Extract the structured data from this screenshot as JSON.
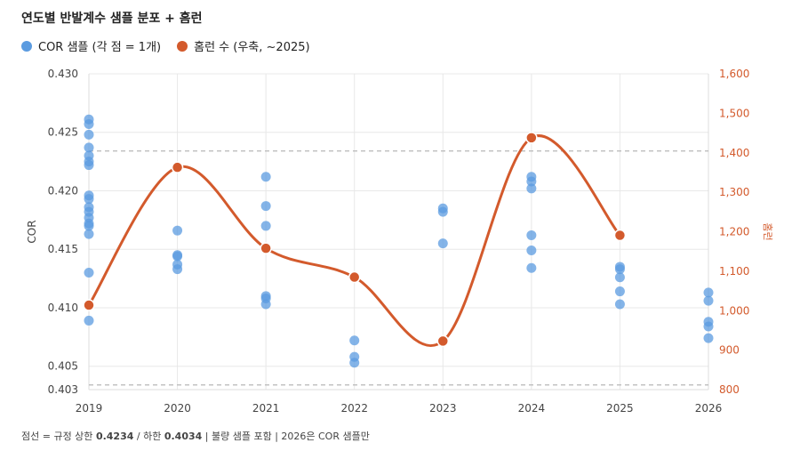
{
  "chart_data": {
    "type": "scatter",
    "title": "연도별 반발계수 샘플 분포 + 홈런",
    "legend": [
      {
        "label": "COR 샘플 (각 점 = 1개)",
        "color": "#5b9be0"
      },
      {
        "label": "홈런 수 (우축, ~2025)",
        "color": "#d35a2c"
      }
    ],
    "x": {
      "label": "",
      "ticks": [
        "2019",
        "2020",
        "2021",
        "2022",
        "2023",
        "2024",
        "2025",
        "2026"
      ]
    },
    "y_left": {
      "label": "COR",
      "range": [
        0.403,
        0.43
      ],
      "ticks": [
        "0.430",
        "0.425",
        "0.420",
        "0.415",
        "0.410",
        "0.405",
        "0.403"
      ],
      "tick_values": [
        0.43,
        0.425,
        0.42,
        0.415,
        0.41,
        0.405,
        0.403
      ]
    },
    "y_right": {
      "label": "홈런",
      "range": [
        800,
        1600
      ],
      "ticks": [
        "1,600",
        "1,500",
        "1,400",
        "1,300",
        "1,200",
        "1,100",
        "1,000",
        "900",
        "800"
      ],
      "tick_values": [
        1600,
        1500,
        1400,
        1300,
        1200,
        1100,
        1000,
        900,
        800
      ]
    },
    "reference_lines": [
      {
        "label": "규정 상한",
        "value": 0.4234
      },
      {
        "label": "하한",
        "value": 0.4034
      }
    ],
    "cor_samples": [
      {
        "year": "2019",
        "values": [
          0.4261,
          0.4257,
          0.4248,
          0.4237,
          0.423,
          0.4225,
          0.4222,
          0.4196,
          0.4193,
          0.4186,
          0.4182,
          0.4177,
          0.4172,
          0.417,
          0.4163,
          0.413,
          0.4089
        ]
      },
      {
        "year": "2020",
        "values": [
          0.4166,
          0.4145,
          0.4144,
          0.4137,
          0.4133
        ]
      },
      {
        "year": "2021",
        "values": [
          0.4212,
          0.4187,
          0.417,
          0.411,
          0.4108,
          0.4103
        ]
      },
      {
        "year": "2022",
        "values": [
          0.4072,
          0.4058,
          0.4053
        ]
      },
      {
        "year": "2023",
        "values": [
          0.4185,
          0.4182,
          0.4155
        ]
      },
      {
        "year": "2024",
        "values": [
          0.4212,
          0.4208,
          0.4202,
          0.4162,
          0.4149,
          0.4134
        ]
      },
      {
        "year": "2025",
        "values": [
          0.4135,
          0.4133,
          0.4126,
          0.4114,
          0.4103
        ]
      },
      {
        "year": "2026",
        "values": [
          0.4113,
          0.4106,
          0.4088,
          0.4084,
          0.4074
        ]
      }
    ],
    "home_runs": [
      {
        "year": "2019",
        "value": 1014
      },
      {
        "year": "2020",
        "value": 1363
      },
      {
        "year": "2021",
        "value": 1158
      },
      {
        "year": "2022",
        "value": 1085
      },
      {
        "year": "2023",
        "value": 923
      },
      {
        "year": "2024",
        "value": 1438
      },
      {
        "year": "2025",
        "value": 1191
      }
    ],
    "grid": true
  },
  "footnote": {
    "prefix": "점선 = 규정 상한 ",
    "upper": "0.4234",
    "mid": " / 하한 ",
    "lower": "0.4034",
    "suffix": " | 불량 샘플 포함 | 2026은 COR 샘플만"
  }
}
